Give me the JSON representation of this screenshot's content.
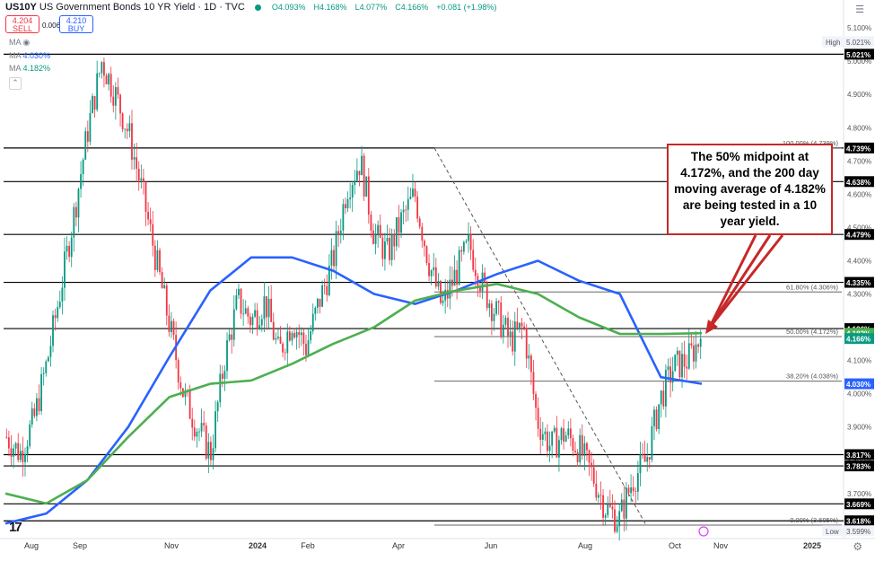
{
  "header": {
    "symbol": "US10Y",
    "title": "US Government Bonds 10 YR Yield · 1D · TVC",
    "open": "O4.093%",
    "high": "H4.168%",
    "low": "L4.077%",
    "close": "C4.166%",
    "change": "+0.081 (+1.98%)"
  },
  "trade": {
    "sell_price": "4.204",
    "sell_label": "SELL",
    "spread": "0.006",
    "buy_price": "4.210",
    "buy_label": "BUY"
  },
  "indicators": {
    "ma_label": "MA",
    "ma1_value": "4.030%",
    "ma2_value": "4.182%"
  },
  "annotation": {
    "text": "The 50% midpoint at 4.172%, and the 200 day moving average of 4.182% are being tested in a 10 year yield."
  },
  "colors": {
    "candle_up": "#089981",
    "candle_down": "#f23645",
    "ma_fast": "#2962ff",
    "ma_slow": "#4caf50",
    "callout": "#c62828"
  },
  "chart_data": {
    "type": "candlestick",
    "ylim": [
      3.57,
      5.13
    ],
    "y_ticks": [
      "3.700%",
      "3.800%",
      "3.900%",
      "4.000%",
      "4.100%",
      "4.200%",
      "4.300%",
      "4.400%",
      "4.500%",
      "4.600%",
      "4.700%",
      "4.800%",
      "4.900%",
      "5.000%",
      "5.100%"
    ],
    "x_ticks": [
      "Aug",
      "Sep",
      "Nov",
      "2024",
      "Feb",
      "Apr",
      "Jun",
      "Aug",
      "Oct",
      "Nov",
      "2025"
    ],
    "hlines": [
      {
        "value": 5.021,
        "label": "5.021%",
        "type": "level"
      },
      {
        "value": 4.739,
        "label": "4.739%",
        "type": "level"
      },
      {
        "value": 4.638,
        "label": "4.638%",
        "type": "level"
      },
      {
        "value": 4.479,
        "label": "4.479%",
        "type": "level"
      },
      {
        "value": 4.335,
        "label": "4.335%",
        "type": "level"
      },
      {
        "value": 4.196,
        "label": "4.196%",
        "type": "level"
      },
      {
        "value": 3.817,
        "label": "3.817%",
        "type": "level"
      },
      {
        "value": 3.783,
        "label": "3.783%",
        "type": "level"
      },
      {
        "value": 3.669,
        "label": "3.669%",
        "type": "level"
      },
      {
        "value": 3.618,
        "label": "3.618%",
        "type": "level"
      }
    ],
    "scale_labels": [
      {
        "value": 5.021,
        "label": "5.021%",
        "type": "high",
        "caption": "High"
      },
      {
        "value": 4.182,
        "label": "4.182%",
        "type": "ma-green"
      },
      {
        "value": 4.166,
        "label": "4.166%",
        "type": "price"
      },
      {
        "value": 4.03,
        "label": "4.030%",
        "type": "ma-blue"
      },
      {
        "value": 3.599,
        "label": "3.599%",
        "type": "low",
        "caption": "Low"
      }
    ],
    "fib_levels": [
      {
        "value": 4.739,
        "label": "100.00% (4.739%)"
      },
      {
        "value": 4.306,
        "label": "61.80% (4.306%)"
      },
      {
        "value": 4.172,
        "label": "50.00% (4.172%)"
      },
      {
        "value": 4.038,
        "label": "38.20% (4.038%)"
      },
      {
        "value": 3.605,
        "label": "0.00% (3.605%)"
      }
    ],
    "series": [
      {
        "name": "MA",
        "color": "#2962ff",
        "values": [
          3.61,
          3.64,
          3.74,
          3.9,
          4.11,
          4.31,
          4.41,
          4.41,
          4.37,
          4.3,
          4.27,
          4.31,
          4.36,
          4.4,
          4.34,
          4.3,
          4.05,
          4.03
        ]
      },
      {
        "name": "MA",
        "color": "#4caf50",
        "values": [
          3.7,
          3.67,
          3.74,
          3.87,
          3.99,
          4.03,
          4.04,
          4.09,
          4.15,
          4.2,
          4.28,
          4.31,
          4.33,
          4.3,
          4.23,
          4.18,
          4.18,
          4.182
        ]
      }
    ],
    "price_path": [
      3.87,
      3.82,
      3.92,
      4.1,
      4.32,
      4.55,
      4.8,
      5.0,
      4.9,
      4.78,
      4.6,
      4.4,
      4.2,
      4.0,
      3.9,
      3.82,
      4.1,
      4.28,
      4.22,
      4.28,
      4.12,
      4.22,
      4.14,
      4.28,
      4.4,
      4.62,
      4.7,
      4.48,
      4.42,
      4.52,
      4.6,
      4.4,
      4.26,
      4.36,
      4.45,
      4.32,
      4.24,
      4.16,
      4.2,
      3.92,
      3.84,
      3.88,
      3.84,
      3.76,
      3.66,
      3.62,
      3.74,
      3.8,
      3.98,
      4.08,
      4.1,
      4.166
    ]
  }
}
